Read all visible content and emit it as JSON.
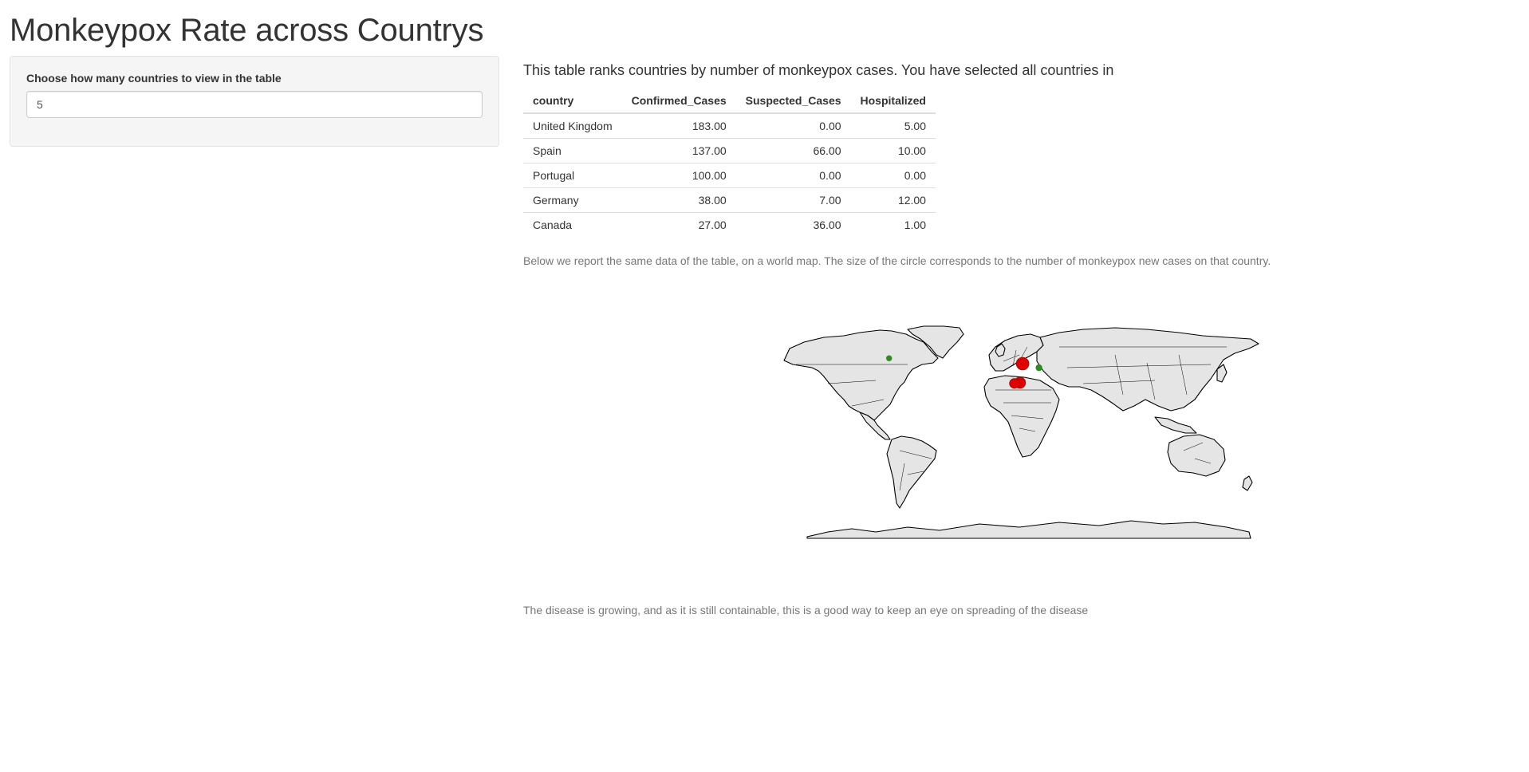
{
  "page": {
    "title": "Monkeypox Rate across Countrys"
  },
  "sidebar": {
    "input_label": "Choose how many countries to view in the table",
    "input_value": "5"
  },
  "main": {
    "intro": "This table ranks countries by number of monkeypox cases. You have selected all countries in",
    "table": {
      "headers": [
        "country",
        "Confirmed_Cases",
        "Suspected_Cases",
        "Hospitalized"
      ],
      "rows": [
        [
          "United Kingdom",
          "183.00",
          "0.00",
          "5.00"
        ],
        [
          "Spain",
          "137.00",
          "66.00",
          "10.00"
        ],
        [
          "Portugal",
          "100.00",
          "0.00",
          "0.00"
        ],
        [
          "Germany",
          "38.00",
          "7.00",
          "12.00"
        ],
        [
          "Canada",
          "27.00",
          "36.00",
          "1.00"
        ]
      ]
    },
    "map_note": "Below we report the same data of the table, on a world map. The size of the circle corresponds to the number of monkeypox new cases on that country.",
    "footer_note": "The disease is growing, and as it is still containable, this is a good way to keep an eye on spreading of the disease"
  },
  "map": {
    "land_color": "#e5e5e5",
    "border_color": "#000000",
    "marker_color": "#e00000",
    "markers": [
      {
        "country": "United Kingdom",
        "lon": -2,
        "lat": 54,
        "cases": 183
      },
      {
        "country": "Spain",
        "lon": -4,
        "lat": 40,
        "cases": 137
      },
      {
        "country": "Portugal",
        "lon": -8,
        "lat": 39.5,
        "cases": 100
      },
      {
        "country": "Germany",
        "lon": 10,
        "lat": 51,
        "cases": 38
      },
      {
        "country": "Canada",
        "lon": -100,
        "lat": 58,
        "cases": 27
      }
    ]
  }
}
